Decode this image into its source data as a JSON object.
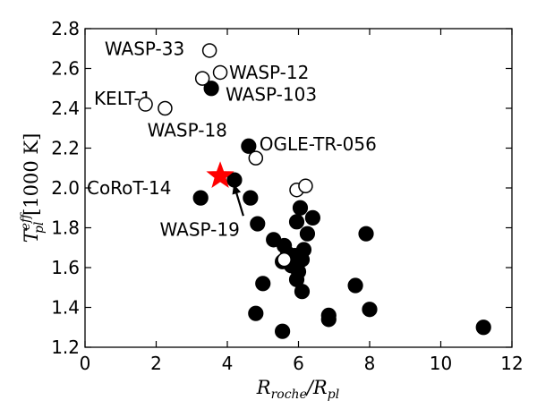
{
  "chart_data": {
    "type": "scatter",
    "xlim": [
      0,
      12
    ],
    "ylim": [
      1.2,
      2.8
    ],
    "x_ticks": [
      "0",
      "2",
      "4",
      "6",
      "8",
      "10",
      "12"
    ],
    "y_ticks": [
      "1.2",
      "1.4",
      "1.6",
      "1.8",
      "2.0",
      "2.2",
      "2.4",
      "2.6",
      "2.8"
    ],
    "grid": false,
    "xlabel": {
      "main": "R",
      "sub1": "roche",
      "sep": "/R",
      "sub2": "pl"
    },
    "ylabel": {
      "main": "T",
      "sup": "eff",
      "sub": "pl",
      "unit": " [1000 K]"
    },
    "colors": {
      "filled": "#000000",
      "open_fill": "#ffffff",
      "star": "#ff0000"
    },
    "open_points": [
      {
        "x": 3.5,
        "y": 2.69
      },
      {
        "x": 3.8,
        "y": 2.58
      },
      {
        "x": 3.3,
        "y": 2.55
      },
      {
        "x": 1.7,
        "y": 2.42
      },
      {
        "x": 2.25,
        "y": 2.4
      },
      {
        "x": 4.8,
        "y": 2.15
      },
      {
        "x": 5.95,
        "y": 1.99
      },
      {
        "x": 6.2,
        "y": 2.01
      },
      {
        "x": 5.6,
        "y": 1.64
      }
    ],
    "filled_points": [
      {
        "x": 3.55,
        "y": 2.5
      },
      {
        "x": 4.6,
        "y": 2.21
      },
      {
        "x": 4.2,
        "y": 2.04
      },
      {
        "x": 3.25,
        "y": 1.95
      },
      {
        "x": 4.65,
        "y": 1.95
      },
      {
        "x": 4.85,
        "y": 1.82
      },
      {
        "x": 5.95,
        "y": 1.83
      },
      {
        "x": 6.05,
        "y": 1.9
      },
      {
        "x": 6.4,
        "y": 1.85
      },
      {
        "x": 6.25,
        "y": 1.77
      },
      {
        "x": 5.3,
        "y": 1.74
      },
      {
        "x": 5.6,
        "y": 1.71
      },
      {
        "x": 5.7,
        "y": 1.67
      },
      {
        "x": 5.9,
        "y": 1.66
      },
      {
        "x": 6.15,
        "y": 1.69
      },
      {
        "x": 6.1,
        "y": 1.64
      },
      {
        "x": 5.8,
        "y": 1.61
      },
      {
        "x": 6.0,
        "y": 1.58
      },
      {
        "x": 5.95,
        "y": 1.54
      },
      {
        "x": 6.1,
        "y": 1.48
      },
      {
        "x": 5.55,
        "y": 1.63
      },
      {
        "x": 5.0,
        "y": 1.52
      },
      {
        "x": 7.9,
        "y": 1.77
      },
      {
        "x": 7.6,
        "y": 1.51
      },
      {
        "x": 4.8,
        "y": 1.37
      },
      {
        "x": 6.85,
        "y": 1.36
      },
      {
        "x": 6.85,
        "y": 1.34
      },
      {
        "x": 8.0,
        "y": 1.39
      },
      {
        "x": 5.55,
        "y": 1.28
      },
      {
        "x": 11.2,
        "y": 1.3
      }
    ],
    "star_point": {
      "x": 3.8,
      "y": 2.06
    },
    "annotations": [
      {
        "text": "WASP-33",
        "x": 0.55,
        "y": 2.7
      },
      {
        "text": "WASP-12",
        "x": 4.05,
        "y": 2.58
      },
      {
        "text": "KELT-1",
        "x": 0.25,
        "y": 2.45
      },
      {
        "text": "WASP-103",
        "x": 3.95,
        "y": 2.47
      },
      {
        "text": "WASP-18",
        "x": 1.75,
        "y": 2.29
      },
      {
        "text": "OGLE-TR-056",
        "x": 4.9,
        "y": 2.22
      },
      {
        "text": "CoRoT-14",
        "x": 0.05,
        "y": 2.0
      },
      {
        "text": "WASP-19",
        "x": 2.1,
        "y": 1.79
      }
    ],
    "arrow": {
      "from": {
        "x": 4.45,
        "y": 1.86
      },
      "to": {
        "x": 4.18,
        "y": 2.02
      }
    }
  }
}
